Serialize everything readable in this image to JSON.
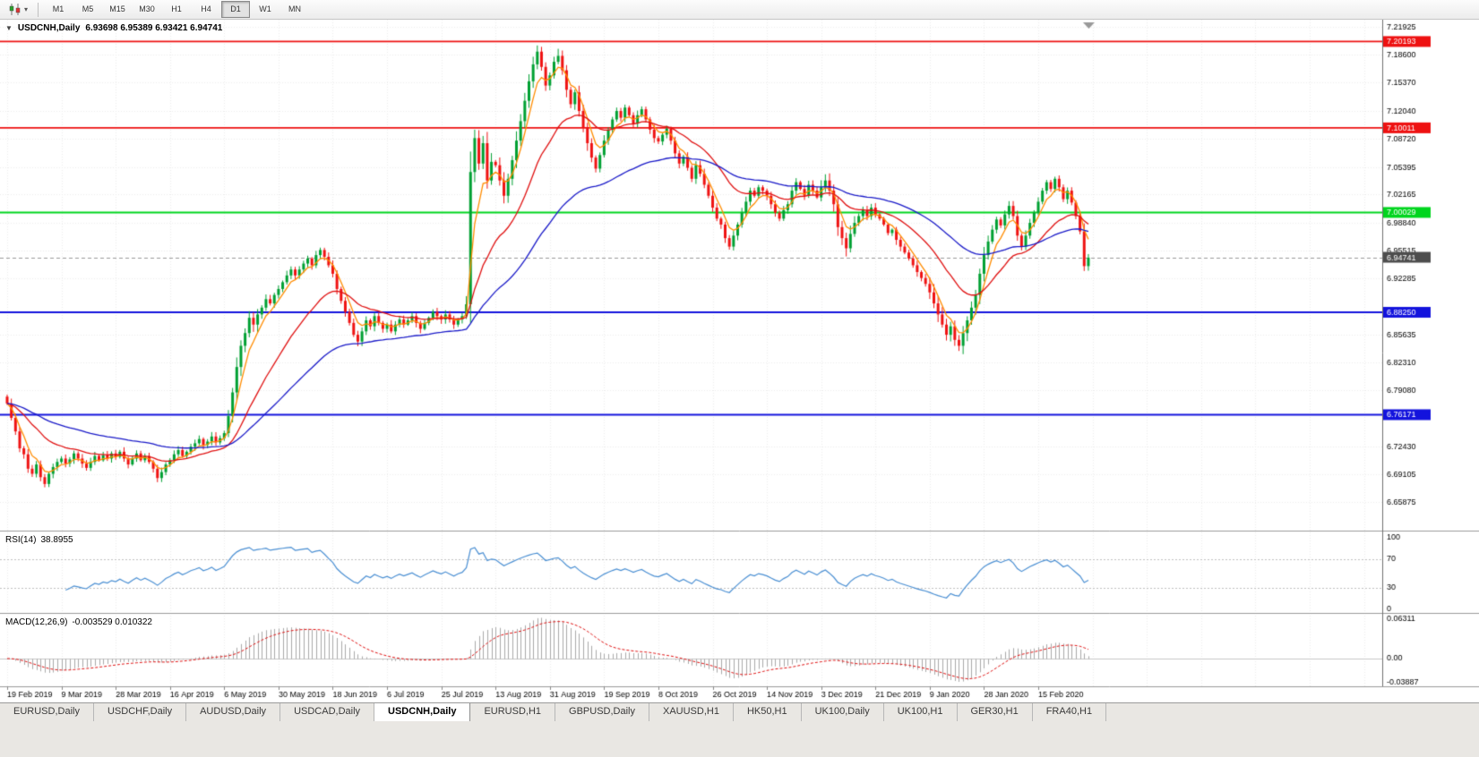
{
  "toolbar": {
    "timeframes": [
      "M1",
      "M5",
      "M15",
      "M30",
      "H1",
      "H4",
      "D1",
      "W1",
      "MN"
    ],
    "active_timeframe": "D1",
    "chart_type_icon": "candlestick-chart-icon",
    "dropdown_caret": "▾"
  },
  "chart_header": {
    "collapse_arrow": "▼",
    "symbol": "USDCNH,Daily",
    "ohlc": "6.93698 6.95389 6.93421 6.94741"
  },
  "indicators": {
    "rsi": {
      "title": "RSI(14)",
      "value": "38.8955",
      "axis_labels": [
        {
          "v": 100,
          "label": "100"
        },
        {
          "v": 70,
          "label": "70"
        },
        {
          "v": 30,
          "label": "30"
        },
        {
          "v": 0,
          "label": "0"
        }
      ],
      "levels": [
        30,
        70
      ]
    },
    "macd": {
      "title": "MACD(12,26,9)",
      "values": "-0.003529 0.010322",
      "axis_labels": [
        {
          "v": 0.06311,
          "label": "0.06311"
        },
        {
          "v": 0,
          "label": "0.00"
        },
        {
          "v": -0.03887,
          "label": "-0.03887"
        }
      ]
    }
  },
  "chart_data": {
    "type": "candlestick",
    "symbol": "USDCNH",
    "timeframe": "Daily",
    "title": "USDCNH,Daily",
    "y_axis": {
      "max": 7.21925,
      "min": 6.65875,
      "tick_labels": [
        "7.21925",
        "7.18600",
        "7.15370",
        "7.12040",
        "7.08720",
        "7.05395",
        "7.02165",
        "6.98840",
        "6.95515",
        "6.92285",
        "6.85635",
        "6.82310",
        "6.79080",
        "6.72430",
        "6.69105",
        "6.65875"
      ]
    },
    "x_labels": [
      "19 Feb 2019",
      "9 Mar 2019",
      "28 Mar 2019",
      "16 Apr 2019",
      "6 May 2019",
      "30 May 2019",
      "18 Jun 2019",
      "6 Jul 2019",
      "25 Jul 2019",
      "13 Aug 2019",
      "31 Aug 2019",
      "19 Sep 2019",
      "8 Oct 2019",
      "26 Oct 2019",
      "14 Nov 2019",
      "3 Dec 2019",
      "21 Dec 2019",
      "9 Jan 2020",
      "28 Jan 2020",
      "15 Feb 2020"
    ],
    "x_label_indices": [
      0,
      13,
      26,
      39,
      52,
      65,
      78,
      91,
      104,
      117,
      130,
      143,
      156,
      169,
      182,
      195,
      208,
      221,
      234,
      247
    ],
    "closes": [
      6.775,
      6.758,
      6.742,
      6.722,
      6.715,
      6.698,
      6.692,
      6.703,
      6.688,
      6.68,
      6.692,
      6.7,
      6.706,
      6.71,
      6.704,
      6.709,
      6.716,
      6.71,
      6.704,
      6.699,
      6.706,
      6.713,
      6.708,
      6.714,
      6.71,
      6.716,
      6.712,
      6.718,
      6.71,
      6.703,
      6.71,
      6.716,
      6.708,
      6.713,
      6.706,
      6.698,
      6.687,
      6.694,
      6.703,
      6.708,
      6.715,
      6.72,
      6.713,
      6.718,
      6.724,
      6.728,
      6.733,
      6.726,
      6.73,
      6.736,
      6.729,
      6.734,
      6.74,
      6.76,
      6.788,
      6.818,
      6.843,
      6.858,
      6.876,
      6.868,
      6.88,
      6.888,
      6.898,
      6.893,
      6.903,
      6.91,
      6.918,
      6.926,
      6.933,
      6.926,
      6.933,
      6.94,
      6.946,
      6.938,
      6.95,
      6.956,
      6.948,
      6.938,
      6.928,
      6.91,
      6.896,
      6.883,
      6.87,
      6.856,
      6.848,
      6.86,
      6.873,
      6.866,
      6.878,
      6.87,
      6.863,
      6.868,
      6.86,
      6.868,
      6.874,
      6.868,
      6.873,
      6.878,
      6.87,
      6.863,
      6.87,
      6.876,
      6.883,
      6.878,
      6.874,
      6.88,
      6.874,
      6.868,
      6.874,
      6.878,
      6.892,
      7.048,
      7.088,
      7.058,
      7.082,
      7.038,
      7.06,
      7.056,
      7.038,
      7.02,
      7.04,
      7.062,
      7.085,
      7.108,
      7.132,
      7.155,
      7.175,
      7.19,
      7.172,
      7.15,
      7.162,
      7.178,
      7.185,
      7.168,
      7.145,
      7.128,
      7.142,
      7.12,
      7.1,
      7.082,
      7.065,
      7.052,
      7.068,
      7.085,
      7.098,
      7.11,
      7.12,
      7.112,
      7.124,
      7.115,
      7.105,
      7.115,
      7.122,
      7.11,
      7.098,
      7.088,
      7.084,
      7.092,
      7.099,
      7.085,
      7.07,
      7.058,
      7.066,
      7.053,
      7.04,
      7.056,
      7.046,
      7.033,
      7.02,
      7.006,
      6.993,
      6.986,
      6.97,
      6.96,
      6.973,
      6.986,
      7.0,
      7.013,
      7.026,
      7.02,
      7.03,
      7.026,
      7.02,
      7.01,
      7.0,
      6.993,
      7.003,
      7.01,
      7.026,
      7.036,
      7.028,
      7.02,
      7.033,
      7.026,
      7.018,
      7.03,
      7.038,
      7.026,
      7.01,
      6.983,
      6.97,
      6.958,
      6.975,
      6.988,
      6.996,
      7.003,
      6.996,
      7.006,
      6.998,
      6.993,
      6.986,
      6.976,
      6.98,
      6.968,
      6.96,
      6.953,
      6.946,
      6.938,
      6.93,
      6.923,
      6.916,
      6.906,
      6.893,
      6.88,
      6.868,
      6.856,
      6.866,
      6.85,
      6.843,
      6.858,
      6.873,
      6.888,
      6.903,
      6.928,
      6.95,
      6.966,
      6.98,
      6.992,
      6.985,
      6.998,
      7.008,
      6.996,
      6.973,
      6.96,
      6.973,
      6.988,
      7.0,
      7.013,
      7.026,
      7.036,
      7.028,
      7.04,
      7.03,
      7.016,
      7.026,
      7.012,
      6.996,
      6.978,
      6.937,
      6.947
    ],
    "levels": [
      {
        "price": 7.20193,
        "label": "7.20193",
        "color": "#ee1111",
        "width": 1.6
      },
      {
        "price": 7.10011,
        "label": "7.10011",
        "color": "#ee1111",
        "width": 1.6
      },
      {
        "price": 7.00029,
        "label": "7.00029",
        "color": "#00d51e",
        "width": 2
      },
      {
        "price": 6.8825,
        "label": "6.88250",
        "color": "#1313dd",
        "width": 2
      },
      {
        "price": 6.76171,
        "label": "6.76171",
        "color": "#1313dd",
        "width": 2
      }
    ],
    "current_price": {
      "value": 6.94741,
      "label": "6.94741"
    },
    "moving_averages": [
      {
        "period": 5,
        "color": "#ff8c00"
      },
      {
        "period": 21,
        "color": "#e01010"
      },
      {
        "period": 55,
        "color": "#1919c8"
      }
    ],
    "colors": {
      "up": "#00a032",
      "down": "#ef1212",
      "rsi_line": "#4a8fd3",
      "macd_hist": "#a9a9a9",
      "macd_signal": "#e01010",
      "grid": "#ededed",
      "level_guide": "#c0c0c0",
      "current_price_box": "#4d4d4d",
      "axis_text": "#000000"
    }
  },
  "tabs": {
    "items": [
      "EURUSD,Daily",
      "USDCHF,Daily",
      "AUDUSD,Daily",
      "USDCAD,Daily",
      "USDCNH,Daily",
      "EURUSD,H1",
      "GBPUSD,Daily",
      "XAUUSD,H1",
      "HK50,H1",
      "UK100,Daily",
      "UK100,H1",
      "GER30,H1",
      "FRA40,H1"
    ],
    "active": "USDCNH,Daily"
  }
}
